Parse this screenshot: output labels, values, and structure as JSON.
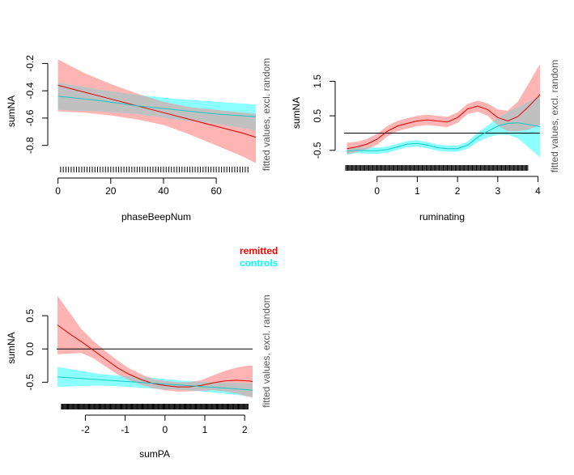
{
  "colors": {
    "remitted_line": "#e00000",
    "remitted_band": "#ffb4b4",
    "controls_line": "#14c8c8",
    "controls_band": "#8cffff",
    "overlap_band": "#c0c0c0",
    "axis": "#000000",
    "side_label": "#555555"
  },
  "legend": [
    {
      "label": "remitted",
      "color": "#ff0000"
    },
    {
      "label": "controls",
      "color": "#00ffff"
    }
  ],
  "chart_data": [
    {
      "type": "line",
      "xlabel": "phaseBeepNum",
      "ylabel": "sumNA",
      "side_label": "fitted values, excl. random",
      "xlim": [
        -0.5,
        75
      ],
      "ylim": [
        -0.95,
        -0.15
      ],
      "xticks": [
        0,
        20,
        40,
        60
      ],
      "xtick_labels": [
        "0",
        "20",
        "40",
        "60"
      ],
      "yticks": [
        -0.8,
        -0.6,
        -0.4,
        -0.2
      ],
      "ytick_labels": [
        "-0.8",
        "-0.6",
        "-0.4",
        "-0.2"
      ],
      "hline": null,
      "rug": {
        "from": 1,
        "to": 72,
        "step": 1
      },
      "series": [
        {
          "name": "remitted",
          "x": [
            0,
            10,
            20,
            30,
            40,
            50,
            60,
            70,
            75
          ],
          "y": [
            -0.36,
            -0.41,
            -0.46,
            -0.51,
            -0.56,
            -0.61,
            -0.66,
            -0.71,
            -0.74
          ],
          "lower": [
            -0.55,
            -0.56,
            -0.58,
            -0.61,
            -0.65,
            -0.72,
            -0.8,
            -0.88,
            -0.93
          ],
          "upper": [
            -0.17,
            -0.27,
            -0.35,
            -0.42,
            -0.48,
            -0.52,
            -0.54,
            -0.56,
            -0.57
          ]
        },
        {
          "name": "controls",
          "x": [
            0,
            15,
            30,
            45,
            60,
            75
          ],
          "y": [
            -0.44,
            -0.47,
            -0.51,
            -0.54,
            -0.57,
            -0.59
          ],
          "lower": [
            -0.54,
            -0.55,
            -0.57,
            -0.61,
            -0.64,
            -0.69
          ],
          "upper": [
            -0.34,
            -0.39,
            -0.43,
            -0.46,
            -0.48,
            -0.5
          ]
        }
      ]
    },
    {
      "type": "line",
      "xlabel": "ruminating",
      "ylabel": "sumNA",
      "side_label": "fitted values, excl. random",
      "xlim": [
        -0.82,
        4.05
      ],
      "ylim": [
        -0.88,
        2.05
      ],
      "xticks": [
        0,
        1,
        2,
        3,
        4
      ],
      "xtick_labels": [
        "0",
        "1",
        "2",
        "3",
        "4"
      ],
      "yticks": [
        -0.5,
        0.5,
        1.5
      ],
      "ytick_labels": [
        "-0.5",
        "0.5",
        "1.5"
      ],
      "hline": 0,
      "rug": {
        "from": -0.78,
        "to": 3.75,
        "step": 0.025
      },
      "series": [
        {
          "name": "remitted",
          "x": [
            -0.75,
            -0.5,
            -0.25,
            0,
            0.25,
            0.5,
            0.75,
            1.0,
            1.25,
            1.5,
            1.75,
            2.0,
            2.25,
            2.5,
            2.75,
            3.0,
            3.25,
            3.5,
            3.75,
            4.0,
            4.05
          ],
          "y": [
            -0.45,
            -0.4,
            -0.32,
            -0.18,
            0.05,
            0.2,
            0.28,
            0.35,
            0.38,
            0.35,
            0.32,
            0.45,
            0.7,
            0.78,
            0.68,
            0.45,
            0.35,
            0.48,
            0.75,
            1.05,
            1.12
          ],
          "lower": [
            -0.62,
            -0.55,
            -0.47,
            -0.34,
            -0.1,
            0.05,
            0.13,
            0.2,
            0.23,
            0.2,
            0.17,
            0.3,
            0.55,
            0.62,
            0.5,
            0.22,
            0.05,
            0.05,
            0.1,
            0.2,
            0.25
          ],
          "upper": [
            -0.28,
            -0.25,
            -0.17,
            -0.02,
            0.2,
            0.35,
            0.43,
            0.5,
            0.53,
            0.5,
            0.47,
            0.6,
            0.85,
            0.94,
            0.86,
            0.68,
            0.65,
            0.91,
            1.4,
            1.9,
            2.0
          ]
        },
        {
          "name": "controls",
          "x": [
            -0.75,
            -0.5,
            -0.25,
            0,
            0.25,
            0.5,
            0.75,
            1.0,
            1.25,
            1.5,
            1.75,
            2.0,
            2.25,
            2.5,
            2.75,
            3.0,
            3.25,
            3.5,
            3.75,
            4.0,
            4.05
          ],
          "y": [
            -0.52,
            -0.5,
            -0.51,
            -0.51,
            -0.48,
            -0.4,
            -0.32,
            -0.3,
            -0.35,
            -0.42,
            -0.45,
            -0.45,
            -0.35,
            -0.12,
            0.05,
            0.2,
            0.28,
            0.3,
            0.25,
            0.2,
            0.18
          ],
          "lower": [
            -0.62,
            -0.58,
            -0.6,
            -0.6,
            -0.57,
            -0.49,
            -0.41,
            -0.39,
            -0.44,
            -0.51,
            -0.54,
            -0.54,
            -0.45,
            -0.26,
            -0.12,
            -0.05,
            -0.05,
            -0.15,
            -0.4,
            -0.65,
            -0.7
          ],
          "upper": [
            -0.42,
            -0.42,
            -0.42,
            -0.42,
            -0.39,
            -0.31,
            -0.23,
            -0.21,
            -0.26,
            -0.33,
            -0.36,
            -0.36,
            -0.25,
            0.02,
            0.22,
            0.45,
            0.61,
            0.75,
            0.9,
            1.05,
            1.06
          ]
        }
      ]
    },
    {
      "type": "line",
      "xlabel": "sumPA",
      "ylabel": "sumNA",
      "side_label": "fitted values, excl. random",
      "xlim": [
        -2.72,
        2.2
      ],
      "ylim": [
        -0.8,
        0.83
      ],
      "xticks": [
        -2,
        -1,
        0,
        1,
        2
      ],
      "xtick_labels": [
        "-2",
        "-1",
        "0",
        "1",
        "2"
      ],
      "yticks": [
        -0.5,
        0.0,
        0.5
      ],
      "ytick_labels": [
        "-0.5",
        "0.0",
        "0.5"
      ],
      "hline": 0,
      "rug": {
        "from": -2.6,
        "to": 2.1,
        "step": 0.022
      },
      "series": [
        {
          "name": "remitted",
          "x": [
            -2.7,
            -2.4,
            -2.1,
            -1.8,
            -1.5,
            -1.2,
            -0.9,
            -0.6,
            -0.3,
            0,
            0.3,
            0.6,
            0.9,
            1.2,
            1.5,
            1.8,
            2.1,
            2.2
          ],
          "y": [
            0.36,
            0.23,
            0.11,
            -0.02,
            -0.15,
            -0.28,
            -0.38,
            -0.46,
            -0.52,
            -0.55,
            -0.57,
            -0.57,
            -0.55,
            -0.51,
            -0.48,
            -0.47,
            -0.48,
            -0.49
          ],
          "lower": [
            -0.08,
            -0.07,
            -0.06,
            -0.14,
            -0.26,
            -0.38,
            -0.47,
            -0.54,
            -0.59,
            -0.62,
            -0.64,
            -0.64,
            -0.63,
            -0.62,
            -0.64,
            -0.67,
            -0.72,
            -0.73
          ],
          "upper": [
            0.8,
            0.55,
            0.3,
            0.12,
            -0.03,
            -0.17,
            -0.29,
            -0.38,
            -0.45,
            -0.48,
            -0.5,
            -0.5,
            -0.47,
            -0.4,
            -0.33,
            -0.28,
            -0.25,
            -0.25
          ]
        },
        {
          "name": "controls",
          "x": [
            -2.7,
            -2.2,
            -1.7,
            -1.2,
            -0.7,
            -0.2,
            0.3,
            0.8,
            1.3,
            1.8,
            2.2
          ],
          "y": [
            -0.42,
            -0.44,
            -0.46,
            -0.48,
            -0.5,
            -0.52,
            -0.54,
            -0.56,
            -0.58,
            -0.6,
            -0.62
          ],
          "lower": [
            -0.57,
            -0.56,
            -0.55,
            -0.56,
            -0.58,
            -0.6,
            -0.61,
            -0.63,
            -0.66,
            -0.69,
            -0.72
          ],
          "upper": [
            -0.27,
            -0.32,
            -0.37,
            -0.4,
            -0.42,
            -0.44,
            -0.47,
            -0.49,
            -0.5,
            -0.51,
            -0.52
          ]
        }
      ]
    }
  ]
}
